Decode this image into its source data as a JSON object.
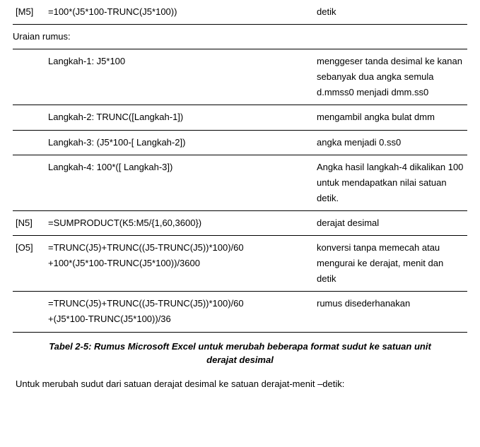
{
  "rows": {
    "m5": {
      "label": "[M5]",
      "formula": "=100*(J5*100-TRUNC(J5*100))",
      "desc": "detik"
    },
    "section": {
      "title": "Uraian rumus:"
    },
    "step1": {
      "formula": "Langkah-1: J5*100",
      "desc": "menggeser tanda desimal ke kanan sebanyak dua angka semula d.mmss0 menjadi dmm.ss0"
    },
    "step2": {
      "formula": "Langkah-2: TRUNC([Langkah-1])",
      "desc": "mengambil angka bulat dmm"
    },
    "step3": {
      "formula": "Langkah-3: (J5*100-[ Langkah-2])",
      "desc": "angka menjadi 0.ss0"
    },
    "step4": {
      "formula": "Langkah-4: 100*([ Langkah-3])",
      "desc": "Angka hasil langkah-4 dikalikan 100 untuk mendapatkan nilai satuan detik."
    },
    "n5": {
      "label": "[N5]",
      "formula": "=SUMPRODUCT(K5:M5/{1,60,3600})",
      "desc": "derajat desimal"
    },
    "o5a": {
      "label": "[O5]",
      "formula_line1": "=TRUNC(J5)+TRUNC((J5-TRUNC(J5))*100)/60",
      "formula_line2": "+100*(J5*100-TRUNC(J5*100))/3600",
      "desc": "konversi tanpa memecah atau mengurai ke derajat, menit dan detik"
    },
    "o5b": {
      "formula_line1": "=TRUNC(J5)+TRUNC((J5-TRUNC(J5))*100)/60",
      "formula_line2": "+(J5*100-TRUNC(J5*100))/36",
      "desc": "rumus disederhanakan"
    }
  },
  "caption": "Tabel 2-5: Rumus Microsoft Excel untuk merubah beberapa format sudut ke satuan unit derajat desimal",
  "bottom": "Untuk merubah sudut dari satuan derajat desimal ke satuan derajat-menit –detik:"
}
